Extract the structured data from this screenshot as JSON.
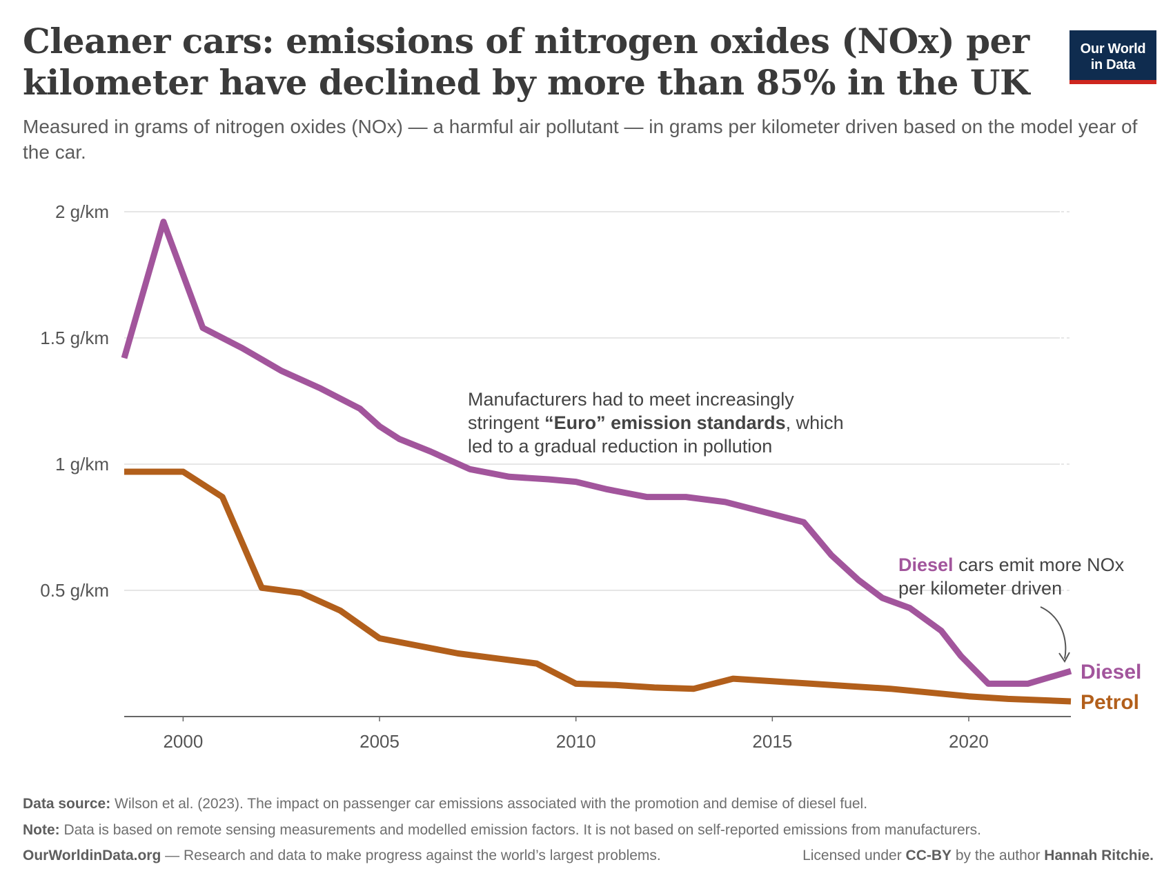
{
  "title": "Cleaner cars: emissions of nitrogen oxides (NOx) per kilometer have declined by more than 85% in the UK",
  "subtitle": "Measured in grams of nitrogen oxides (NOx) — a harmful air pollutant — in grams per kilometer driven based on the model year of the car.",
  "logo": {
    "line1": "Our World",
    "line2": "in Data",
    "bg": "#0f2c4f",
    "accent": "#ce261e"
  },
  "annotation": {
    "part1": "Manufacturers had to meet increasingly",
    "part2_pre": "stringent ",
    "part2_bold": "“Euro” emission standards",
    "part2_post": ", which",
    "part3": "led to a gradual reduction in pollution"
  },
  "diesel_note": {
    "label": "Diesel",
    "rest1": " cars emit more NOx",
    "line2": "per kilometer driven"
  },
  "footer": {
    "source_label": "Data source:",
    "source_text": " Wilson et al. (2023). The impact on passenger car emissions associated with the promotion and demise of diesel fuel.",
    "note_label": "Note:",
    "note_text": " Data is based on remote sensing measurements and modelled emission factors. It is not based on self-reported emissions from manufacturers.",
    "site": "OurWorldinData.org",
    "site_tagline": " — Research and data to make progress against the world’s largest problems.",
    "license_pre": "Licensed under ",
    "license": "CC-BY",
    "license_mid": " by the author ",
    "author": "Hannah Ritchie."
  },
  "chart_data": {
    "type": "line",
    "xlim": [
      1998.5,
      2022.6
    ],
    "ylim": [
      0,
      2.0
    ],
    "yticks": [
      {
        "value": 0.5,
        "label": "0.5 g/km"
      },
      {
        "value": 1,
        "label": "1 g/km"
      },
      {
        "value": 1.5,
        "label": "1.5 g/km"
      },
      {
        "value": 2,
        "label": "2 g/km"
      }
    ],
    "xticks": [
      {
        "value": 2000,
        "label": "2000"
      },
      {
        "value": 2005,
        "label": "2005"
      },
      {
        "value": 2010,
        "label": "2010"
      },
      {
        "value": 2015,
        "label": "2015"
      },
      {
        "value": 2020,
        "label": "2020"
      }
    ],
    "grid": true,
    "series": [
      {
        "name": "Diesel",
        "color": "#a2559c",
        "x": [
          1998.5,
          1999.5,
          2000.5,
          2001.5,
          2002.5,
          2003.5,
          2004.5,
          2005,
          2005.5,
          2006.3,
          2007.3,
          2008.3,
          2009.3,
          2010,
          2010.8,
          2011.8,
          2012.8,
          2013.8,
          2014.8,
          2015.8,
          2016.5,
          2017.2,
          2017.8,
          2018.5,
          2019.3,
          2019.8,
          2020.5,
          2021.5,
          2022.6
        ],
        "values": [
          1.42,
          1.96,
          1.54,
          1.46,
          1.37,
          1.3,
          1.22,
          1.15,
          1.1,
          1.05,
          0.98,
          0.95,
          0.94,
          0.93,
          0.9,
          0.87,
          0.87,
          0.85,
          0.81,
          0.77,
          0.64,
          0.54,
          0.47,
          0.43,
          0.34,
          0.24,
          0.13,
          0.13,
          0.18
        ]
      },
      {
        "name": "Petrol",
        "color": "#b25f1b",
        "x": [
          1998.5,
          1999.5,
          2000,
          2001,
          2002,
          2003,
          2004,
          2005,
          2006,
          2007,
          2008,
          2009,
          2010,
          2011,
          2012,
          2013,
          2014,
          2015,
          2016,
          2017,
          2018,
          2019,
          2020,
          2021,
          2022.6
        ],
        "values": [
          0.97,
          0.97,
          0.97,
          0.87,
          0.51,
          0.49,
          0.42,
          0.31,
          0.28,
          0.25,
          0.23,
          0.21,
          0.13,
          0.125,
          0.115,
          0.11,
          0.15,
          0.14,
          0.13,
          0.12,
          0.11,
          0.095,
          0.08,
          0.07,
          0.06
        ]
      }
    ]
  }
}
